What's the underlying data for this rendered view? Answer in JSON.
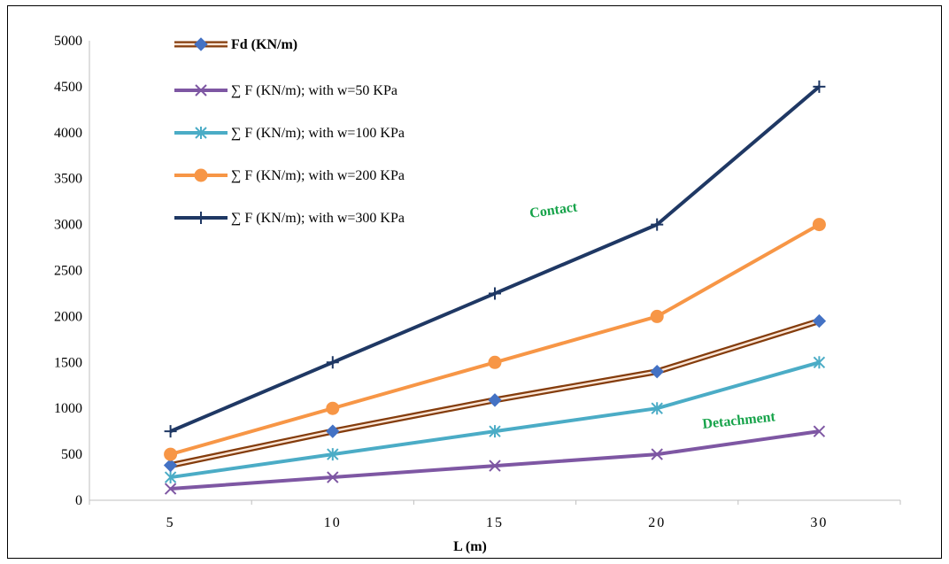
{
  "chart_data": {
    "type": "line",
    "categories": [
      "5",
      "10",
      "15",
      "20",
      "30"
    ],
    "xlabel": "L (m)",
    "ylabel": "",
    "ylim": [
      0,
      5000
    ],
    "yticks": [
      0,
      500,
      1000,
      1500,
      2000,
      2500,
      3000,
      3500,
      4000,
      4500,
      5000
    ],
    "grid": false,
    "legend_position": "top-left",
    "series": [
      {
        "name": "Fd (KN/m)",
        "values": [
          380,
          750,
          1090,
          1400,
          1950
        ],
        "color": "#4472c4",
        "line_color": "#843c0c",
        "marker": "diamond"
      },
      {
        "name": "∑ F (KN/m); with w=50 KPa",
        "values": [
          125,
          250,
          375,
          500,
          750
        ],
        "color": "#7e57a3",
        "marker": "x"
      },
      {
        "name": "∑ F (KN/m); with w=100 KPa",
        "values": [
          250,
          500,
          750,
          1000,
          1500
        ],
        "color": "#4bacc6",
        "marker": "star"
      },
      {
        "name": "∑ F (KN/m); with w=200 KPa",
        "values": [
          500,
          1000,
          1500,
          2000,
          3000
        ],
        "color": "#f79646",
        "marker": "circle"
      },
      {
        "name": "∑ F (KN/m); with w=300 KPa",
        "values": [
          750,
          1500,
          2250,
          3000,
          4500
        ],
        "color": "#1f3864",
        "marker": "plus"
      }
    ],
    "annotations": [
      {
        "text": "Contact",
        "color": "#16a34a"
      },
      {
        "text": "Detachment",
        "color": "#16a34a"
      }
    ]
  }
}
